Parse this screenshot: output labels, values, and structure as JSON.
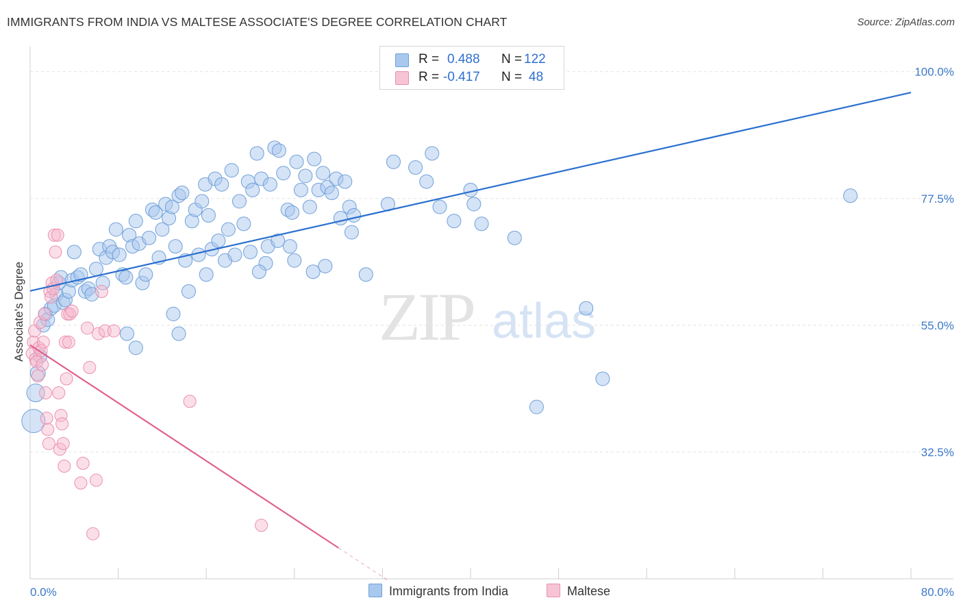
{
  "title": "IMMIGRANTS FROM INDIA VS MALTESE ASSOCIATE'S DEGREE CORRELATION CHART",
  "source": "Source: ZipAtlas.com",
  "watermark": {
    "zip": "ZIP",
    "atlas": "atlas"
  },
  "legend": {
    "rows": [
      {
        "r_label": "R =",
        "r_value": "0.488",
        "n_label": "N =",
        "n_value": "122"
      },
      {
        "r_label": "R =",
        "r_value": "-0.417",
        "n_label": "N =",
        "n_value": "48"
      }
    ]
  },
  "bottom_legend": {
    "india": "Immigrants from India",
    "maltese": "Maltese"
  },
  "colors": {
    "india_fill": "#a9c8ee",
    "india_stroke": "#6f9fd9",
    "india_line": "#2a6fcf",
    "maltese_fill": "#f6b8cc",
    "maltese_stroke": "#ea8faf",
    "maltese_line": "#e0608f",
    "tick_text": "#3b78c9",
    "grid": "#e4e4e4"
  },
  "chart_data": {
    "type": "scatter",
    "title": "IMMIGRANTS FROM INDIA VS MALTESE ASSOCIATE'S DEGREE CORRELATION CHART",
    "xlabel": "",
    "ylabel": "Associate's Degree",
    "xlim": [
      0,
      80
    ],
    "ylim": [
      10,
      103
    ],
    "x_tick_labels": [
      "0.0%",
      "80.0%"
    ],
    "y_ticks": [
      32.5,
      55.0,
      77.5,
      100.0
    ],
    "y_tick_labels": [
      "32.5%",
      "55.0%",
      "77.5%",
      "100.0%"
    ],
    "grid": "horizontal dashed",
    "legend_placement": "top-center",
    "series": [
      {
        "name": "Immigrants from India",
        "R": 0.488,
        "N": 122,
        "trend": {
          "x": [
            0,
            80
          ],
          "y": [
            61.1,
            96.3
          ]
        },
        "points": [
          [
            0.3,
            38.0
          ],
          [
            0.5,
            43.0
          ],
          [
            0.7,
            46.5
          ],
          [
            0.9,
            49.5
          ],
          [
            1.2,
            55.0
          ],
          [
            1.4,
            57.0
          ],
          [
            1.6,
            56.0
          ],
          [
            1.9,
            58.0
          ],
          [
            2.2,
            58.5
          ],
          [
            2.4,
            60.5
          ],
          [
            2.6,
            62.5
          ],
          [
            2.8,
            63.5
          ],
          [
            3.0,
            59.0
          ],
          [
            3.2,
            59.5
          ],
          [
            3.5,
            61.0
          ],
          [
            3.8,
            63.0
          ],
          [
            4.0,
            68.0
          ],
          [
            4.3,
            63.5
          ],
          [
            4.6,
            64.0
          ],
          [
            5.0,
            61.0
          ],
          [
            5.3,
            61.5
          ],
          [
            5.6,
            60.5
          ],
          [
            6.0,
            65.0
          ],
          [
            6.3,
            68.5
          ],
          [
            6.6,
            62.5
          ],
          [
            6.9,
            67.0
          ],
          [
            7.2,
            69.0
          ],
          [
            7.5,
            68.0
          ],
          [
            7.8,
            72.0
          ],
          [
            8.1,
            67.5
          ],
          [
            8.4,
            64.0
          ],
          [
            8.7,
            63.5
          ],
          [
            9.0,
            71.0
          ],
          [
            9.3,
            69.0
          ],
          [
            9.6,
            73.5
          ],
          [
            9.9,
            69.5
          ],
          [
            10.2,
            62.5
          ],
          [
            10.5,
            64.0
          ],
          [
            10.8,
            70.5
          ],
          [
            11.1,
            75.5
          ],
          [
            11.4,
            75.0
          ],
          [
            11.7,
            67.0
          ],
          [
            12.0,
            72.0
          ],
          [
            12.3,
            76.5
          ],
          [
            12.6,
            74.0
          ],
          [
            12.9,
            76.0
          ],
          [
            13.2,
            69.0
          ],
          [
            13.5,
            78.0
          ],
          [
            13.8,
            78.5
          ],
          [
            14.1,
            66.5
          ],
          [
            14.4,
            61.0
          ],
          [
            14.7,
            73.5
          ],
          [
            15.0,
            75.5
          ],
          [
            15.3,
            67.5
          ],
          [
            15.6,
            77.0
          ],
          [
            15.9,
            80.0
          ],
          [
            16.2,
            74.5
          ],
          [
            16.5,
            68.5
          ],
          [
            16.8,
            81.0
          ],
          [
            17.1,
            70.0
          ],
          [
            17.4,
            80.0
          ],
          [
            17.7,
            66.5
          ],
          [
            18.0,
            72.0
          ],
          [
            18.3,
            82.5
          ],
          [
            18.6,
            67.5
          ],
          [
            19.0,
            77.0
          ],
          [
            19.4,
            73.0
          ],
          [
            19.8,
            80.5
          ],
          [
            20.2,
            79.0
          ],
          [
            20.6,
            85.5
          ],
          [
            21.0,
            81.0
          ],
          [
            21.4,
            66.0
          ],
          [
            21.8,
            80.0
          ],
          [
            22.2,
            86.5
          ],
          [
            22.6,
            86.0
          ],
          [
            23.0,
            82.0
          ],
          [
            23.4,
            75.5
          ],
          [
            23.8,
            75.0
          ],
          [
            24.2,
            84.0
          ],
          [
            24.6,
            79.0
          ],
          [
            25.0,
            81.5
          ],
          [
            25.4,
            76.0
          ],
          [
            25.8,
            84.5
          ],
          [
            26.2,
            79.0
          ],
          [
            26.6,
            82.0
          ],
          [
            27.0,
            79.5
          ],
          [
            27.4,
            78.5
          ],
          [
            27.8,
            81.0
          ],
          [
            28.2,
            74.0
          ],
          [
            28.6,
            80.5
          ],
          [
            29.0,
            76.0
          ],
          [
            29.4,
            74.5
          ],
          [
            8.8,
            53.5
          ],
          [
            9.6,
            51.0
          ],
          [
            13.0,
            57.0
          ],
          [
            13.5,
            53.5
          ],
          [
            16.0,
            64.0
          ],
          [
            20.0,
            68.0
          ],
          [
            20.8,
            64.5
          ],
          [
            21.6,
            69.0
          ],
          [
            22.5,
            70.0
          ],
          [
            23.6,
            69.0
          ],
          [
            24.0,
            66.5
          ],
          [
            25.7,
            64.5
          ],
          [
            26.8,
            65.5
          ],
          [
            29.2,
            71.5
          ],
          [
            30.5,
            64.0
          ],
          [
            36.0,
            80.5
          ],
          [
            32.5,
            76.5
          ],
          [
            33.0,
            84.0
          ],
          [
            35.0,
            83.0
          ],
          [
            36.5,
            85.5
          ],
          [
            37.2,
            76.0
          ],
          [
            38.5,
            73.5
          ],
          [
            40.0,
            79.0
          ],
          [
            40.3,
            76.5
          ],
          [
            41.0,
            73.0
          ],
          [
            44.0,
            70.5
          ],
          [
            46.0,
            40.5
          ],
          [
            50.5,
            58.0
          ],
          [
            52.0,
            45.5
          ],
          [
            74.5,
            78.0
          ]
        ]
      },
      {
        "name": "Maltese",
        "R": -0.417,
        "N": 48,
        "trend": {
          "x": [
            0,
            28
          ],
          "y": [
            51.5,
            15.5
          ]
        },
        "points": [
          [
            0.2,
            50.0
          ],
          [
            0.3,
            52.0
          ],
          [
            0.4,
            54.0
          ],
          [
            0.5,
            49.0
          ],
          [
            0.6,
            48.5
          ],
          [
            0.7,
            46.0
          ],
          [
            0.8,
            51.0
          ],
          [
            0.9,
            55.5
          ],
          [
            1.0,
            50.5
          ],
          [
            1.1,
            48.0
          ],
          [
            1.2,
            52.0
          ],
          [
            1.3,
            57.0
          ],
          [
            1.4,
            43.0
          ],
          [
            1.5,
            38.5
          ],
          [
            1.6,
            36.5
          ],
          [
            1.7,
            34.0
          ],
          [
            1.8,
            61.0
          ],
          [
            1.9,
            60.0
          ],
          [
            2.0,
            62.5
          ],
          [
            2.1,
            61.5
          ],
          [
            2.2,
            71.0
          ],
          [
            2.3,
            68.0
          ],
          [
            2.4,
            63.0
          ],
          [
            2.5,
            71.0
          ],
          [
            2.6,
            43.0
          ],
          [
            2.7,
            33.0
          ],
          [
            2.8,
            39.0
          ],
          [
            2.9,
            37.5
          ],
          [
            3.0,
            34.0
          ],
          [
            3.1,
            30.0
          ],
          [
            3.2,
            52.0
          ],
          [
            3.3,
            45.5
          ],
          [
            3.4,
            57.0
          ],
          [
            3.5,
            52.0
          ],
          [
            3.6,
            57.0
          ],
          [
            3.8,
            57.5
          ],
          [
            4.6,
            27.0
          ],
          [
            4.8,
            30.5
          ],
          [
            5.2,
            54.5
          ],
          [
            5.4,
            47.5
          ],
          [
            5.7,
            18.0
          ],
          [
            6.0,
            27.5
          ],
          [
            6.2,
            53.5
          ],
          [
            6.5,
            61.0
          ],
          [
            6.8,
            54.0
          ],
          [
            7.6,
            54.0
          ],
          [
            14.5,
            41.5
          ],
          [
            21.0,
            19.5
          ]
        ]
      }
    ]
  }
}
